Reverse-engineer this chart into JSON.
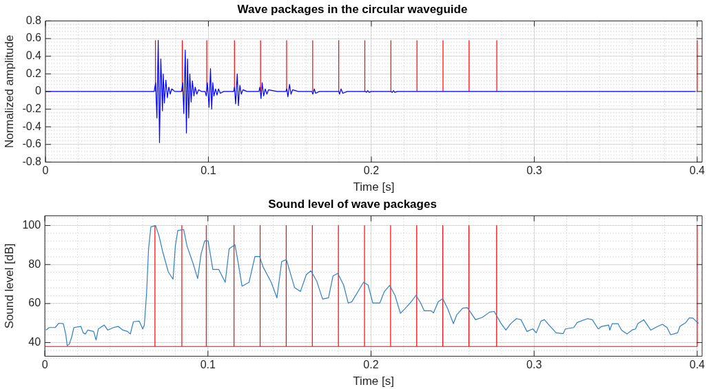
{
  "chart_data": [
    {
      "type": "line",
      "title": "Wave packages in the circular waveguide",
      "xlabel": "Time [s]",
      "ylabel": "Normalized amplitude",
      "xlim": [
        0,
        0.403
      ],
      "xticks": [
        0,
        0.1,
        0.2,
        0.3,
        0.4
      ],
      "ylim": [
        -0.8,
        0.8
      ],
      "yticks": [
        -0.8,
        -0.6,
        -0.4,
        -0.2,
        0,
        0.2,
        0.4,
        0.6,
        0.8
      ],
      "grid": true,
      "series": [
        {
          "color": "#ff0000",
          "x": [
            0.0675,
            0.0675
          ],
          "values": [
            0,
            0.58
          ]
        },
        {
          "color": "#ff0000",
          "x": [
            0.084,
            0.084
          ],
          "values": [
            0,
            0.58
          ]
        },
        {
          "color": "#ff0000",
          "x": [
            0.099,
            0.099
          ],
          "values": [
            0,
            0.58
          ]
        },
        {
          "color": "#ff0000",
          "x": [
            0.116,
            0.116
          ],
          "values": [
            0,
            0.58
          ]
        },
        {
          "color": "#ff0000",
          "x": [
            0.132,
            0.132
          ],
          "values": [
            0,
            0.58
          ]
        },
        {
          "color": "#ff0000",
          "x": [
            0.148,
            0.148
          ],
          "values": [
            0,
            0.58
          ]
        },
        {
          "color": "#ff0000",
          "x": [
            0.164,
            0.164
          ],
          "values": [
            0,
            0.58
          ]
        },
        {
          "color": "#ff0000",
          "x": [
            0.18,
            0.18
          ],
          "values": [
            0,
            0.58
          ]
        },
        {
          "color": "#ff0000",
          "x": [
            0.196,
            0.196
          ],
          "values": [
            0,
            0.58
          ]
        },
        {
          "color": "#ff0000",
          "x": [
            0.212,
            0.212
          ],
          "values": [
            0,
            0.58
          ]
        },
        {
          "color": "#ff0000",
          "x": [
            0.228,
            0.228
          ],
          "values": [
            0,
            0.58
          ]
        },
        {
          "color": "#ff0000",
          "x": [
            0.244,
            0.244
          ],
          "values": [
            0,
            0.58
          ]
        },
        {
          "color": "#ff0000",
          "x": [
            0.26,
            0.26
          ],
          "values": [
            0,
            0.58
          ]
        },
        {
          "color": "#ff0000",
          "x": [
            0.277,
            0.277
          ],
          "values": [
            0,
            0.58
          ]
        },
        {
          "color": "#ff0000",
          "x": [
            0.4,
            0.4
          ],
          "values": [
            0,
            0.58
          ]
        },
        {
          "color": "#0000ff",
          "x": [
            0,
            0.066,
            0.0667,
            0.0676,
            0.0684,
            0.0692,
            0.07,
            0.0708,
            0.0718,
            0.0723,
            0.073,
            0.0739,
            0.0748,
            0.0757,
            0.0766,
            0.0775,
            0.0794,
            0.0835,
            0.0842,
            0.0849,
            0.0858,
            0.0865,
            0.0872,
            0.0879,
            0.0886,
            0.0894,
            0.0902,
            0.0911,
            0.0919,
            0.0929,
            0.094,
            0.0958,
            0.098,
            0.0987,
            0.0994,
            0.1004,
            0.1013,
            0.102,
            0.1027,
            0.1034,
            0.1044,
            0.1053,
            0.1062,
            0.1073,
            0.1094,
            0.1155,
            0.116,
            0.1167,
            0.1177,
            0.1184,
            0.1193,
            0.1202,
            0.1212,
            0.1237,
            0.131,
            0.1316,
            0.1323,
            0.133,
            0.1339,
            0.1349,
            0.1359,
            0.1369,
            0.1422,
            0.1475,
            0.1481,
            0.1488,
            0.1498,
            0.1507,
            0.1517,
            0.1552,
            0.1635,
            0.1641,
            0.165,
            0.1658,
            0.1681,
            0.18,
            0.1805,
            0.1814,
            0.1825,
            0.1852,
            0.1965,
            0.197,
            0.1978,
            0.1986,
            0.2,
            0.212,
            0.2128,
            0.2136,
            0.2144,
            0.216,
            0.399
          ],
          "values": [
            0,
            0,
            0,
            0.1,
            -0.3,
            0.58,
            -0.58,
            0.37,
            -0.22,
            0.2,
            -0.13,
            0.13,
            -0.07,
            0.05,
            -0.03,
            0.03,
            0,
            0,
            0.1,
            -0.25,
            0.47,
            -0.47,
            0.37,
            -0.3,
            0.2,
            -0.12,
            0.12,
            -0.05,
            0.05,
            -0.03,
            0.02,
            0,
            0,
            -0.05,
            0.1,
            -0.18,
            0.26,
            -0.2,
            0.1,
            -0.05,
            0.03,
            -0.04,
            0.03,
            -0.02,
            0,
            0,
            0.05,
            -0.14,
            0.2,
            -0.16,
            0.07,
            -0.03,
            0.02,
            0,
            0,
            0.05,
            -0.08,
            0.1,
            -0.05,
            0.03,
            -0.03,
            0.02,
            0,
            0,
            0.03,
            -0.06,
            0.08,
            -0.03,
            0.02,
            0,
            0,
            -0.03,
            0.03,
            -0.02,
            0,
            0,
            -0.03,
            0.03,
            -0.02,
            0,
            0,
            -0.01,
            0.01,
            -0.01,
            0,
            0,
            -0.01,
            0.01,
            -0.01,
            0,
            0
          ]
        }
      ]
    },
    {
      "type": "line",
      "title": "Sound level of wave packages",
      "xlabel": "Time [s]",
      "ylabel": "Sound level [dB]",
      "xlim": [
        0,
        0.403
      ],
      "xticks": [
        0,
        0.1,
        0.2,
        0.3,
        0.4
      ],
      "ylim": [
        33,
        105
      ],
      "yticks": [
        40,
        60,
        80,
        100
      ],
      "grid": true,
      "series": [
        {
          "color": "#ff0000",
          "x": [
            0,
            0.0675,
            0.0675,
            0.0675,
            0.084,
            0.084,
            0.084,
            0.099,
            0.099,
            0.099,
            0.116,
            0.116,
            0.116,
            0.132,
            0.132,
            0.132,
            0.148,
            0.148,
            0.148,
            0.164,
            0.164,
            0.164,
            0.18,
            0.18,
            0.18,
            0.196,
            0.196,
            0.196,
            0.212,
            0.212,
            0.212,
            0.228,
            0.228,
            0.228,
            0.244,
            0.244,
            0.244,
            0.26,
            0.26,
            0.26,
            0.277,
            0.277,
            0.277,
            0.4,
            0.4
          ],
          "values": [
            38,
            38,
            100,
            38,
            38,
            100,
            38,
            38,
            100,
            38,
            38,
            100,
            38,
            38,
            100,
            38,
            38,
            100,
            38,
            38,
            100,
            38,
            38,
            100,
            38,
            38,
            100,
            38,
            38,
            100,
            38,
            38,
            100,
            38,
            38,
            100,
            38,
            38,
            100,
            38,
            38,
            100,
            38,
            38,
            100
          ]
        },
        {
          "color": "#2c7fc4",
          "x": [
            0.0006,
            0.0027,
            0.0063,
            0.0085,
            0.0113,
            0.0128,
            0.0137,
            0.0149,
            0.0163,
            0.0178,
            0.0221,
            0.0235,
            0.0249,
            0.0263,
            0.0299,
            0.0314,
            0.0328,
            0.0364,
            0.0385,
            0.0421,
            0.045,
            0.0478,
            0.0507,
            0.0524,
            0.0543,
            0.0579,
            0.06,
            0.061,
            0.0624,
            0.0636,
            0.065,
            0.0679,
            0.07,
            0.0722,
            0.0757,
            0.0786,
            0.08,
            0.0815,
            0.0851,
            0.0872,
            0.0908,
            0.0937,
            0.0958,
            0.098,
            0.1001,
            0.103,
            0.1066,
            0.1106,
            0.113,
            0.1166,
            0.1187,
            0.1209,
            0.1252,
            0.1288,
            0.1317,
            0.1338,
            0.1388,
            0.1423,
            0.1452,
            0.1481,
            0.1531,
            0.1567,
            0.1603,
            0.1631,
            0.1667,
            0.1703,
            0.1739,
            0.1767,
            0.1796,
            0.1832,
            0.186,
            0.1882,
            0.1954,
            0.1982,
            0.2011,
            0.2054,
            0.2082,
            0.2114,
            0.2147,
            0.218,
            0.2204,
            0.224,
            0.2276,
            0.2304,
            0.2326,
            0.2369,
            0.2383,
            0.2412,
            0.244,
            0.2469,
            0.2505,
            0.2526,
            0.2562,
            0.2591,
            0.2641,
            0.2684,
            0.2727,
            0.2755,
            0.2798,
            0.2827,
            0.2856,
            0.2892,
            0.292,
            0.2956,
            0.2992,
            0.3013,
            0.3042,
            0.3063,
            0.3099,
            0.3135,
            0.3178,
            0.3192,
            0.3243,
            0.3264,
            0.3328,
            0.3357,
            0.3393,
            0.3414,
            0.3457,
            0.3464,
            0.3479,
            0.3514,
            0.3536,
            0.3569,
            0.36,
            0.3622,
            0.3636,
            0.3672,
            0.3715,
            0.3758,
            0.3787,
            0.3815,
            0.3837,
            0.388,
            0.3894,
            0.393,
            0.3951,
            0.3973,
            0.4001,
            0.4009
          ],
          "values": [
            46.4,
            47.7,
            47.7,
            49.9,
            49.7,
            44.4,
            38.4,
            39.1,
            42.4,
            47.7,
            48.3,
            45,
            44.4,
            46.4,
            45.7,
            41.3,
            47,
            49,
            46.4,
            47.7,
            48.3,
            46.4,
            45.7,
            44.4,
            50.7,
            51,
            47,
            49,
            65.6,
            88.1,
            99.3,
            100,
            94.7,
            86.8,
            76.2,
            72.5,
            89.4,
            97.4,
            98,
            89.4,
            80.8,
            72.8,
            85.4,
            92.1,
            92.1,
            77.5,
            77.5,
            70.9,
            88.1,
            90.1,
            80.1,
            68.9,
            70.9,
            84.1,
            84.1,
            78.8,
            70.9,
            62.9,
            81.5,
            82.5,
            68.2,
            66.2,
            74.8,
            76.8,
            71.5,
            62.3,
            62.9,
            74.2,
            75.5,
            69.5,
            60.3,
            60.9,
            70.9,
            69.5,
            60.3,
            60.3,
            66.2,
            69.3,
            64.2,
            55,
            57,
            60.3,
            64.2,
            60.3,
            56.3,
            56.3,
            55.2,
            60.9,
            62.5,
            57.6,
            49.7,
            54.3,
            57.6,
            57.9,
            51.7,
            53,
            55.6,
            56,
            49.7,
            46.4,
            49.7,
            52.3,
            51.7,
            45.7,
            47,
            45,
            51,
            51.7,
            48.3,
            45,
            44.6,
            47,
            47.7,
            50.3,
            52.3,
            51.7,
            47,
            48.3,
            49,
            46.4,
            49.7,
            49.7,
            46.4,
            44.4,
            46.4,
            47,
            49.7,
            51.7,
            46.4,
            48.3,
            49.4,
            47.7,
            44,
            45,
            48.3,
            50.3,
            52.6,
            52.6,
            50.3,
            49.9
          ]
        }
      ]
    }
  ]
}
